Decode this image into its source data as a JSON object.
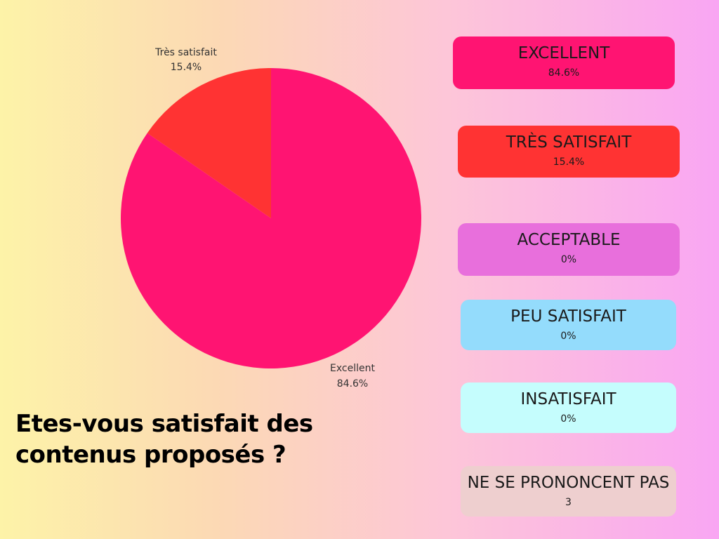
{
  "question": "Etes-vous satisfait des contenus proposés ?",
  "chart_data": {
    "type": "pie",
    "slices": [
      {
        "label": "Excellent",
        "value": 84.6,
        "value_label": "84.6%",
        "color": "#ff1472"
      },
      {
        "label": "Très satisfait",
        "value": 15.4,
        "value_label": "15.4%",
        "color": "#ff3333"
      }
    ]
  },
  "legend": [
    {
      "label": "EXCELLENT",
      "value": "84.6%",
      "color": "#ff1472"
    },
    {
      "label": "TRÈS SATISFAIT",
      "value": "15.4%",
      "color": "#ff3333"
    },
    {
      "label": "ACCEPTABLE",
      "value": "0%",
      "color": "#e86fdc"
    },
    {
      "label": "PEU SATISFAIT",
      "value": "0%",
      "color": "#94dcfc"
    },
    {
      "label": "INSATISFAIT",
      "value": "0%",
      "color": "#c5fdfd"
    },
    {
      "label": "NE SE PRONONCENT PAS",
      "value": "3",
      "color": "#eecfcf"
    }
  ]
}
